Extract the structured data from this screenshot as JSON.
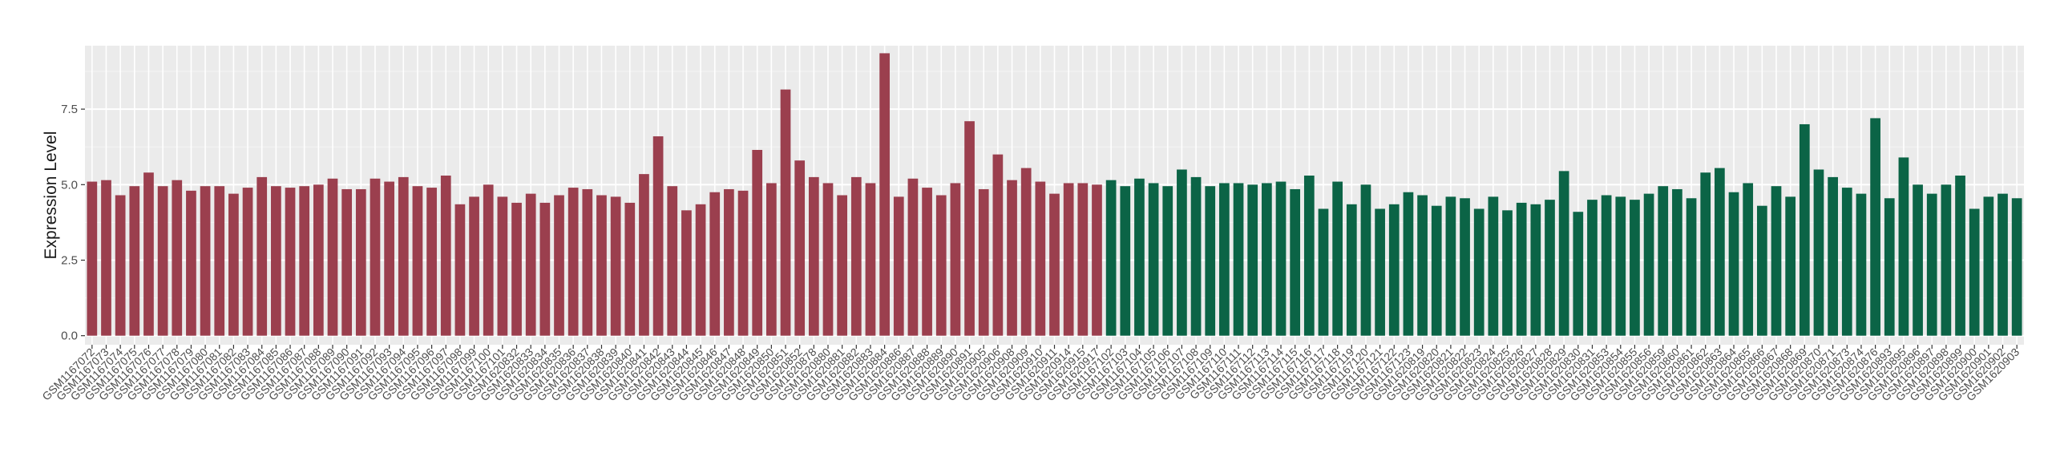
{
  "chart_data": {
    "type": "bar",
    "title": "",
    "xlabel": "",
    "ylabel": "Expression Level",
    "ylim": [
      -0.3,
      9.6
    ],
    "yticks": [
      "0.0",
      "2.5",
      "5.0",
      "7.5"
    ],
    "ytick_values": [
      0,
      2.5,
      5,
      7.5
    ],
    "grid": true,
    "legend": "none",
    "colors": {
      "panel": "#EBEBEB",
      "grid_major": "#FFFFFF",
      "grid_minor": "#F5F5F5"
    },
    "series": [
      {
        "color": "#9B3F4E",
        "categories": [
          "GSM1167072",
          "GSM1167073",
          "GSM1167074",
          "GSM1167075",
          "GSM1167076",
          "GSM1167077",
          "GSM1167078",
          "GSM1167079",
          "GSM1167080",
          "GSM1167081",
          "GSM1167082",
          "GSM1167083",
          "GSM1167084",
          "GSM1167085",
          "GSM1167086",
          "GSM1167087",
          "GSM1167088",
          "GSM1167089",
          "GSM1167090",
          "GSM1167091",
          "GSM1167092",
          "GSM1167093",
          "GSM1167094",
          "GSM1167095",
          "GSM1167096",
          "GSM1167097",
          "GSM1167098",
          "GSM1167099",
          "GSM1167100",
          "GSM1167101",
          "GSM1620832",
          "GSM1620833",
          "GSM1620834",
          "GSM1620835",
          "GSM1620836",
          "GSM1620837",
          "GSM1620838",
          "GSM1620839",
          "GSM1620840",
          "GSM1620841",
          "GSM1620842",
          "GSM1620843",
          "GSM1620844",
          "GSM1620845",
          "GSM1620846",
          "GSM1620847",
          "GSM1620848",
          "GSM1620849",
          "GSM1620850",
          "GSM1620851",
          "GSM1620852",
          "GSM1620878",
          "GSM1620880",
          "GSM1620881",
          "GSM1620882",
          "GSM1620883",
          "GSM1620884",
          "GSM1620886",
          "GSM1620887",
          "GSM1620888",
          "GSM1620889",
          "GSM1620890",
          "GSM1620891",
          "GSM1620905",
          "GSM1620906",
          "GSM1620908",
          "GSM1620909",
          "GSM1620910",
          "GSM1620911",
          "GSM1620914",
          "GSM1620915",
          "GSM1620917"
        ],
        "values": [
          5.1,
          5.15,
          4.65,
          4.95,
          5.4,
          4.95,
          5.15,
          4.8,
          4.95,
          4.95,
          4.7,
          4.9,
          5.25,
          4.95,
          4.9,
          4.95,
          5.0,
          5.2,
          4.85,
          4.85,
          5.2,
          5.1,
          5.25,
          4.95,
          4.9,
          5.3,
          4.35,
          4.6,
          5.0,
          4.6,
          4.4,
          4.7,
          4.4,
          4.65,
          4.9,
          4.85,
          4.65,
          4.6,
          4.4,
          5.35,
          6.6,
          4.95,
          4.15,
          4.35,
          4.75,
          4.85,
          4.8,
          6.15,
          5.05,
          8.15,
          5.8,
          5.25,
          5.05,
          4.65,
          5.25,
          5.05,
          9.35,
          4.6,
          5.2,
          4.9,
          4.65,
          5.05,
          7.1,
          4.85,
          6.0,
          5.15,
          5.55,
          5.1,
          4.7,
          5.05,
          5.05,
          5.0
        ]
      },
      {
        "color": "#0B6446",
        "categories": [
          "GSM1167102",
          "GSM1167103",
          "GSM1167104",
          "GSM1167105",
          "GSM1167106",
          "GSM1167107",
          "GSM1167108",
          "GSM1167109",
          "GSM1167110",
          "GSM1167111",
          "GSM1167112",
          "GSM1167113",
          "GSM1167114",
          "GSM1167115",
          "GSM1167116",
          "GSM1167117",
          "GSM1167118",
          "GSM1167119",
          "GSM1167120",
          "GSM1167121",
          "GSM1167122",
          "GSM1167123",
          "GSM1620819",
          "GSM1620820",
          "GSM1620821",
          "GSM1620822",
          "GSM1620823",
          "GSM1620824",
          "GSM1620825",
          "GSM1620826",
          "GSM1620827",
          "GSM1620828",
          "GSM1620829",
          "GSM1620830",
          "GSM1620831",
          "GSM1620853",
          "GSM1620854",
          "GSM1620855",
          "GSM1620856",
          "GSM1620859",
          "GSM1620860",
          "GSM1620861",
          "GSM1620862",
          "GSM1620863",
          "GSM1620864",
          "GSM1620865",
          "GSM1620866",
          "GSM1620867",
          "GSM1620868",
          "GSM1620869",
          "GSM1620870",
          "GSM1620871",
          "GSM1620873",
          "GSM1620874",
          "GSM1620876",
          "GSM1620893",
          "GSM1620895",
          "GSM1620896",
          "GSM1620897",
          "GSM1620898",
          "GSM1620899",
          "GSM1620900",
          "GSM1620901",
          "GSM1620902",
          "GSM1620903"
        ],
        "values": [
          5.15,
          4.95,
          5.2,
          5.05,
          4.95,
          5.5,
          5.25,
          4.95,
          5.05,
          5.05,
          5.0,
          5.05,
          5.1,
          4.85,
          5.3,
          4.2,
          5.1,
          4.35,
          5.0,
          4.2,
          4.35,
          4.75,
          4.65,
          4.3,
          4.6,
          4.55,
          4.2,
          4.6,
          4.15,
          4.4,
          4.35,
          4.5,
          5.45,
          4.1,
          4.5,
          4.65,
          4.6,
          4.5,
          4.7,
          4.95,
          4.85,
          4.55,
          5.4,
          5.55,
          4.75,
          5.05,
          4.3,
          4.95,
          4.6,
          7.0,
          5.5,
          5.25,
          4.9,
          4.7,
          7.2,
          4.55,
          5.9,
          5.0,
          4.7,
          5.0,
          5.3,
          4.2,
          4.6,
          4.7,
          4.55
        ]
      }
    ]
  }
}
